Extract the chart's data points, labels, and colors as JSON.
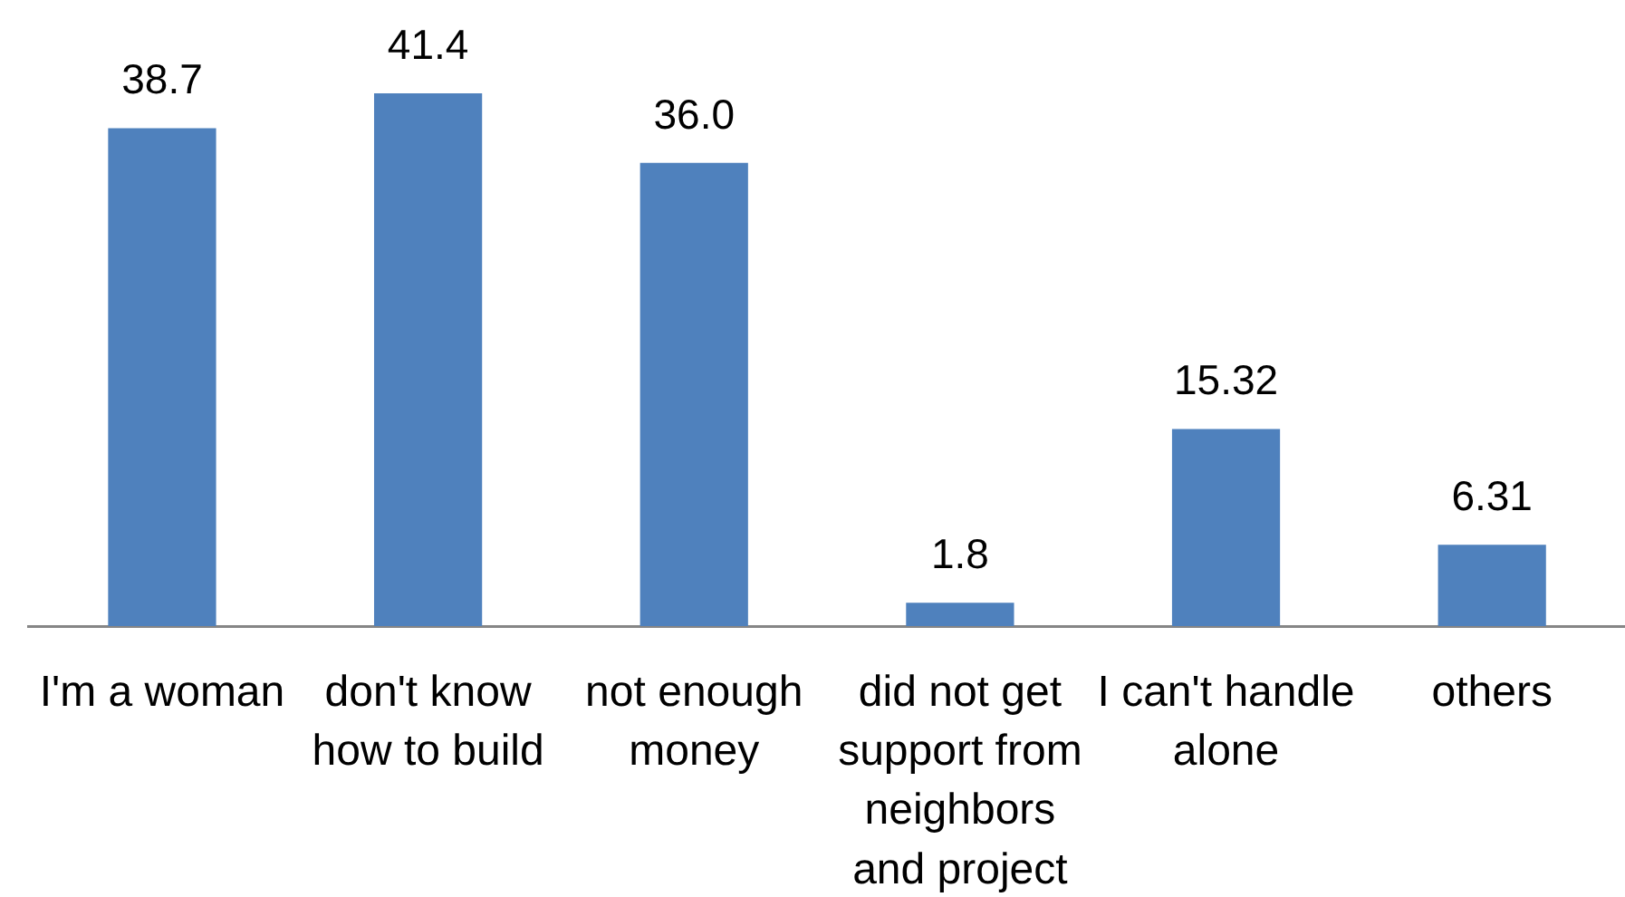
{
  "chart_data": {
    "type": "bar",
    "categories": [
      "I'm a woman",
      "don't know how to build",
      "not enough money",
      "did not get support from neighbors and project",
      "I can't handle alone",
      "others"
    ],
    "values": [
      38.7,
      41.4,
      36.0,
      1.8,
      15.32,
      6.31
    ],
    "color": "#4f81bd",
    "value_labels": [
      "38.7",
      "41.4",
      "36.0",
      "1.8",
      "15.32",
      "6.31"
    ],
    "tick_labels": "x"
  }
}
